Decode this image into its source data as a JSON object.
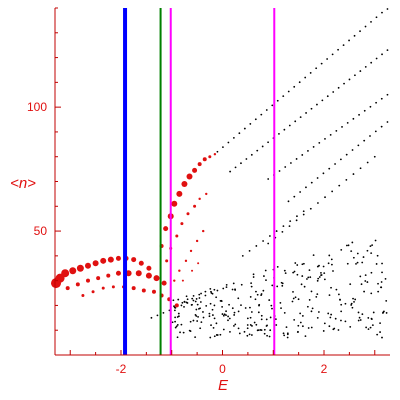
{
  "chart_data": {
    "type": "scatter",
    "xlabel": "E",
    "ylabel": "<n>",
    "xlim": [
      -3.3,
      3.3
    ],
    "ylim": [
      0,
      140
    ],
    "xticks": [
      -2,
      0,
      2
    ],
    "yticks": [
      50,
      100
    ],
    "xtick_labels": [
      "-2",
      "0",
      "2"
    ],
    "ytick_labels": [
      "50",
      "100"
    ],
    "vertical_lines": [
      {
        "x": -1.92,
        "color": "#0000ff",
        "style": "thick"
      },
      {
        "x": -1.22,
        "color": "#008000",
        "style": "thin"
      },
      {
        "x": -1.02,
        "color": "#ff00ff",
        "style": "thin"
      },
      {
        "x": 1.02,
        "color": "#ff00ff",
        "style": "thin"
      }
    ],
    "series": [
      {
        "color": "#e01010",
        "points": [
          [
            -3.3,
            29,
            5
          ],
          [
            -3.2,
            31,
            4.5
          ],
          [
            -3.1,
            33,
            4
          ],
          [
            -2.95,
            34,
            3.5
          ],
          [
            -2.8,
            35,
            3.5
          ],
          [
            -2.65,
            36,
            3
          ],
          [
            -2.5,
            37,
            3
          ],
          [
            -2.35,
            38,
            3
          ],
          [
            -2.2,
            38.5,
            3
          ],
          [
            -2.05,
            39,
            2.5
          ],
          [
            -1.9,
            39,
            2.5
          ],
          [
            -1.75,
            38.5,
            2.5
          ],
          [
            -1.6,
            37,
            2.5
          ],
          [
            -1.45,
            35,
            2.5
          ],
          [
            -3.05,
            27,
            2
          ],
          [
            -2.85,
            28.5,
            2
          ],
          [
            -2.65,
            30,
            2
          ],
          [
            -2.45,
            31,
            2
          ],
          [
            -2.25,
            32,
            2
          ],
          [
            -2.05,
            33,
            2.5
          ],
          [
            -1.85,
            33,
            3
          ],
          [
            -1.65,
            33,
            3
          ],
          [
            -1.45,
            32,
            3
          ],
          [
            -1.3,
            31,
            3
          ],
          [
            -1.15,
            29,
            2.5
          ],
          [
            -2.75,
            24,
            1.5
          ],
          [
            -2.55,
            25.5,
            1.5
          ],
          [
            -2.35,
            27,
            1.5
          ],
          [
            -2.15,
            27.5,
            1.5
          ],
          [
            -1.95,
            27.5,
            1.5
          ],
          [
            -1.75,
            27,
            2
          ],
          [
            -1.55,
            26,
            2
          ],
          [
            -1.35,
            25.5,
            2
          ],
          [
            -1.2,
            24,
            2
          ],
          [
            -1.05,
            22.5,
            2
          ],
          [
            -0.9,
            20,
            2
          ],
          [
            -1.2,
            44,
            2
          ],
          [
            -1.12,
            51,
            2.5
          ],
          [
            -1.02,
            56,
            3
          ],
          [
            -0.95,
            61,
            3
          ],
          [
            -0.85,
            65,
            3
          ],
          [
            -0.75,
            69,
            3
          ],
          [
            -0.65,
            72,
            3
          ],
          [
            -0.55,
            74.5,
            2.5
          ],
          [
            -0.45,
            77,
            2
          ],
          [
            -0.35,
            79,
            2
          ],
          [
            -0.25,
            80,
            1.5
          ],
          [
            -0.15,
            81,
            1.2
          ],
          [
            -1.1,
            38,
            1.5
          ],
          [
            -1.02,
            43,
            1.5
          ],
          [
            -0.9,
            48,
            1.5
          ],
          [
            -0.8,
            53,
            1.5
          ],
          [
            -0.68,
            57,
            1.5
          ],
          [
            -0.55,
            60,
            1.5
          ],
          [
            -0.45,
            63,
            1.2
          ],
          [
            -0.32,
            65,
            1.2
          ],
          [
            -0.95,
            30,
            1.2
          ],
          [
            -0.85,
            34,
            1.2
          ],
          [
            -0.72,
            38,
            1.2
          ],
          [
            -0.62,
            42,
            1.2
          ],
          [
            -0.5,
            46,
            1.2
          ],
          [
            -0.38,
            50,
            1.2
          ],
          [
            -0.78,
            30,
            1
          ],
          [
            -0.6,
            34,
            1
          ],
          [
            -0.48,
            37,
            1
          ]
        ]
      },
      {
        "color": "#000000",
        "lines": [
          {
            "x0": -0.1,
            "y0": 82,
            "x1": 3.25,
            "y1": 140,
            "n": 32
          },
          {
            "x0": 0.15,
            "y0": 74,
            "x1": 3.25,
            "y1": 123,
            "n": 30
          },
          {
            "x0": 0.9,
            "y0": 71,
            "x1": 3.25,
            "y1": 105,
            "n": 22
          },
          {
            "x0": 1.3,
            "y0": 62,
            "x1": 3.25,
            "y1": 94,
            "n": 18
          },
          {
            "x0": 0.9,
            "y0": 45,
            "x1": 3.0,
            "y1": 80,
            "n": 16
          },
          {
            "x0": -1.4,
            "y0": 15,
            "x1": -0.1,
            "y1": 26,
            "n": 12
          },
          {
            "x0": 0.4,
            "y0": 40,
            "x1": 1.6,
            "y1": 58,
            "n": 10
          }
        ],
        "cloud": {
          "xmin": -1.0,
          "xmax": 3.25,
          "ymin": 7,
          "ymax": 50,
          "count": 320,
          "seed": 7
        }
      }
    ]
  }
}
